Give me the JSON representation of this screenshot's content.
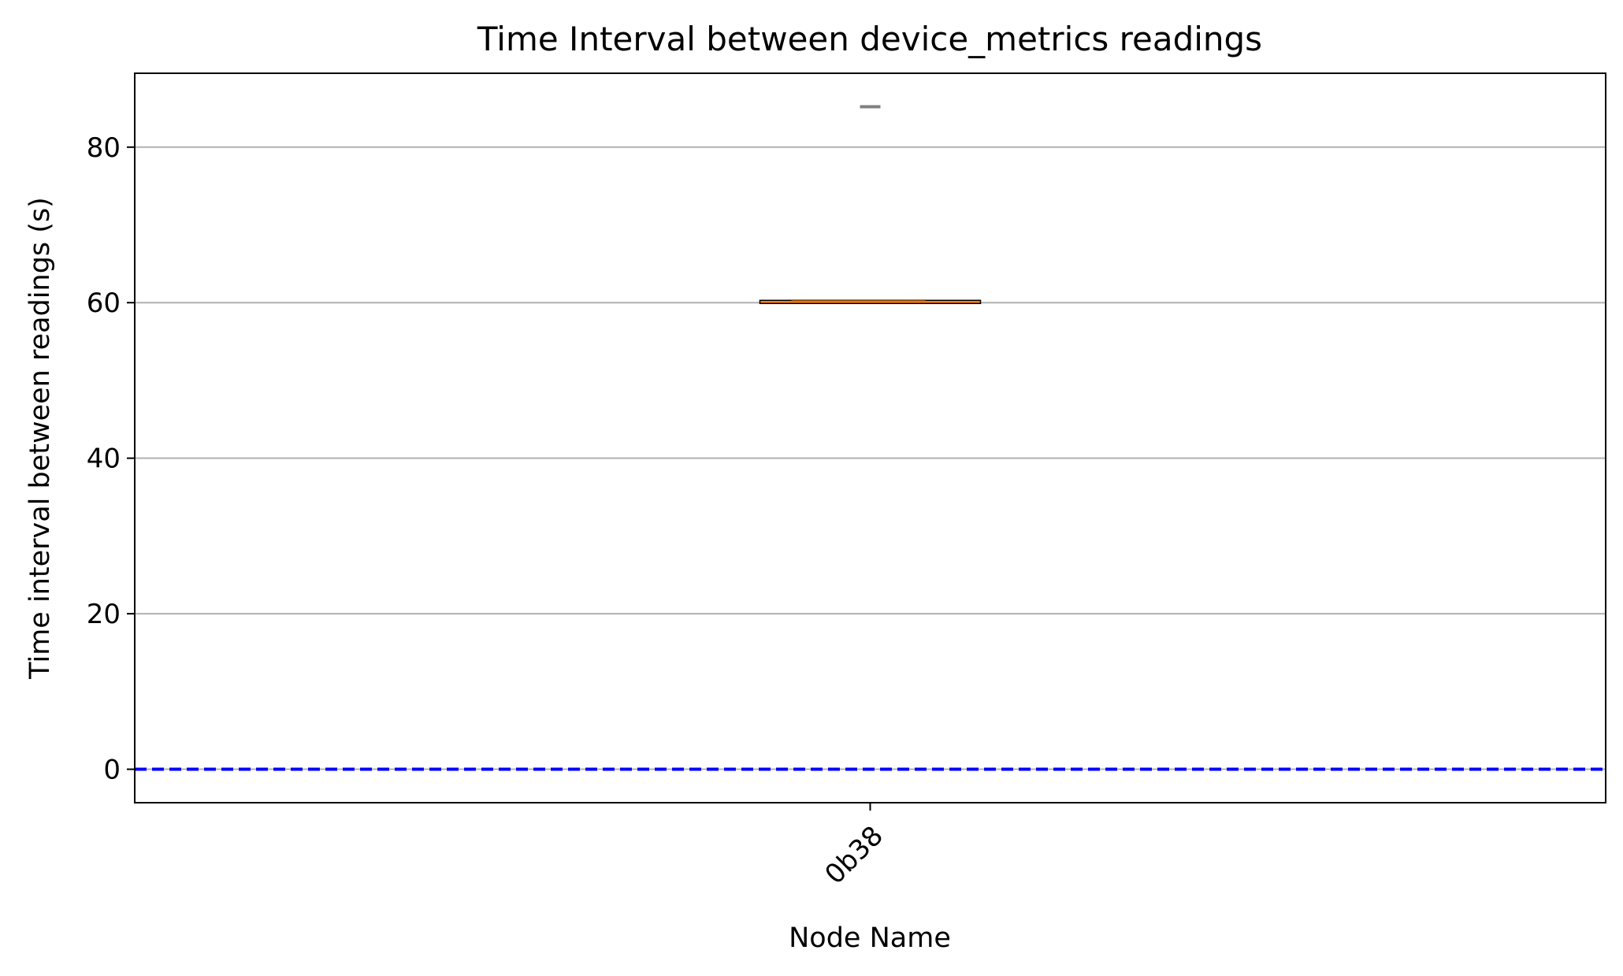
{
  "chart_data": {
    "type": "box",
    "title": "Time Interval between device_metrics readings",
    "xlabel": "Node Name",
    "ylabel": "Time interval between readings (s)",
    "categories": [
      "0b38"
    ],
    "boxes": [
      {
        "category": "0b38",
        "q1": 60.0,
        "median": 60.3,
        "q3": 60.3,
        "whisker_low": 60.0,
        "whisker_high": 60.3,
        "outliers": [
          85.2
        ]
      }
    ],
    "reference_line": {
      "y": 0,
      "style": "dashed",
      "color": "#0000ff"
    },
    "ylim": [
      -4.3,
      89.5
    ],
    "yticks": [
      0,
      20,
      40,
      60,
      80
    ],
    "grid": "y",
    "colors": {
      "box_fill": "#ff7f0e",
      "box_edge": "#000000",
      "outlier": "#808080",
      "grid": "#b0b0b0"
    }
  }
}
